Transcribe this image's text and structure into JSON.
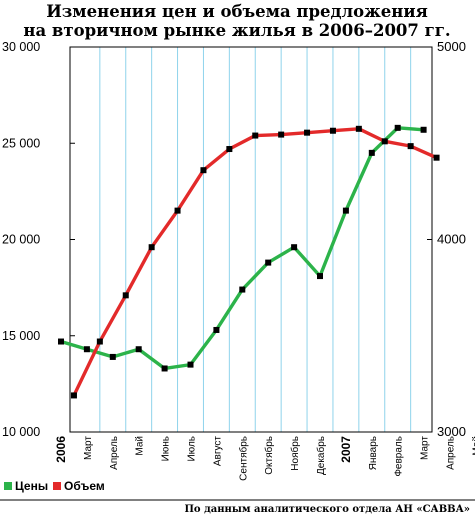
{
  "chart_data": {
    "type": "line",
    "title_line1": "Изменения цен и объема предложения",
    "title_line2": "на вторичном рынке жилья в 2006–2007 гг.",
    "categories": [
      "2006",
      "Март",
      "Апрель",
      "Май",
      "Июнь",
      "Июль",
      "Август",
      "Сентябрь",
      "Октябрь",
      "Ноябрь",
      "Декабрь",
      "2007",
      "Январь",
      "Февраль",
      "Март",
      "Апрель",
      "Май"
    ],
    "year_labels": [
      "2006",
      "2007"
    ],
    "left_axis": {
      "ylim": [
        10000,
        30000
      ],
      "ticks": [
        "10 000",
        "15 000",
        "20 000",
        "25 000",
        "30 000"
      ],
      "tick_values": [
        10000,
        15000,
        20000,
        25000,
        30000
      ]
    },
    "right_axis": {
      "ylim": [
        3000,
        5000
      ],
      "ticks": [
        "3000",
        "4000",
        "5000"
      ],
      "tick_values": [
        3000,
        4000,
        5000
      ]
    },
    "series": [
      {
        "name": "Цены",
        "axis": "left",
        "color": "#2cb34a",
        "x": [
          0,
          1,
          2,
          3,
          4,
          5,
          6,
          7,
          8,
          9,
          10,
          11,
          12,
          13,
          14,
          15
        ],
        "values": [
          14700,
          14300,
          13900,
          14300,
          13300,
          13500,
          15300,
          17400,
          18800,
          19600,
          18100,
          21500,
          24500,
          25800,
          25700,
          null
        ]
      },
      {
        "name": "Объем",
        "axis": "right",
        "color": "#e32a2a",
        "x": [
          0.5,
          1.5,
          2.5,
          3.5,
          4.5,
          5.5,
          6.5,
          7.5,
          8.5,
          9.5,
          10.5,
          11.5,
          12.5,
          13.5,
          14.5
        ],
        "values": [
          3190,
          3470,
          3710,
          3960,
          4150,
          4360,
          4470,
          4540,
          4545,
          4555,
          4565,
          4575,
          4510,
          4485,
          4425
        ]
      }
    ],
    "grid": {
      "vertical": true,
      "horizontal": false,
      "vertical_color": "#8fd3ec"
    },
    "legend": {
      "position": "bottom-left"
    },
    "source": "По данным аналитического отдела АН «САВВА»"
  }
}
